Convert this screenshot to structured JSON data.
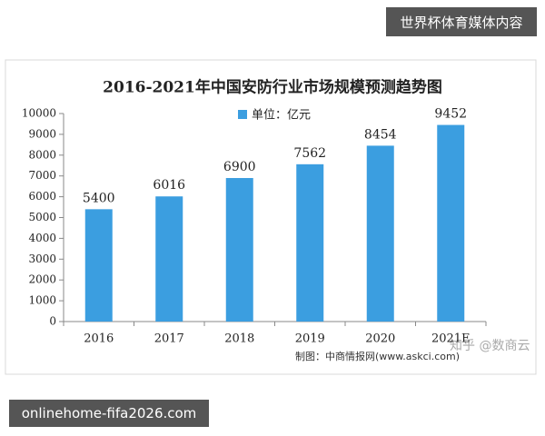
{
  "page": {
    "top_badge": "世界杯体育媒体内容",
    "bottom_badge": "onlinehome-fifa2026.com",
    "watermark": "知乎 @数商云"
  },
  "chart_data": {
    "type": "bar",
    "title": "2016-2021年中国安防行业市场规模预测趋势图",
    "categories": [
      "2016",
      "2017",
      "2018",
      "2019",
      "2020",
      "2021E"
    ],
    "series": [
      {
        "name": "单位：亿元",
        "color": "#3b9ee0",
        "values": [
          5400,
          6016,
          6900,
          7562,
          8454,
          9452
        ]
      }
    ],
    "ylim": [
      0,
      10000
    ],
    "yticks": [
      0,
      1000,
      2000,
      3000,
      4000,
      5000,
      6000,
      7000,
      8000,
      9000,
      10000
    ],
    "source": "制图：中商情报网(www.askci.com)",
    "legend": "top"
  }
}
